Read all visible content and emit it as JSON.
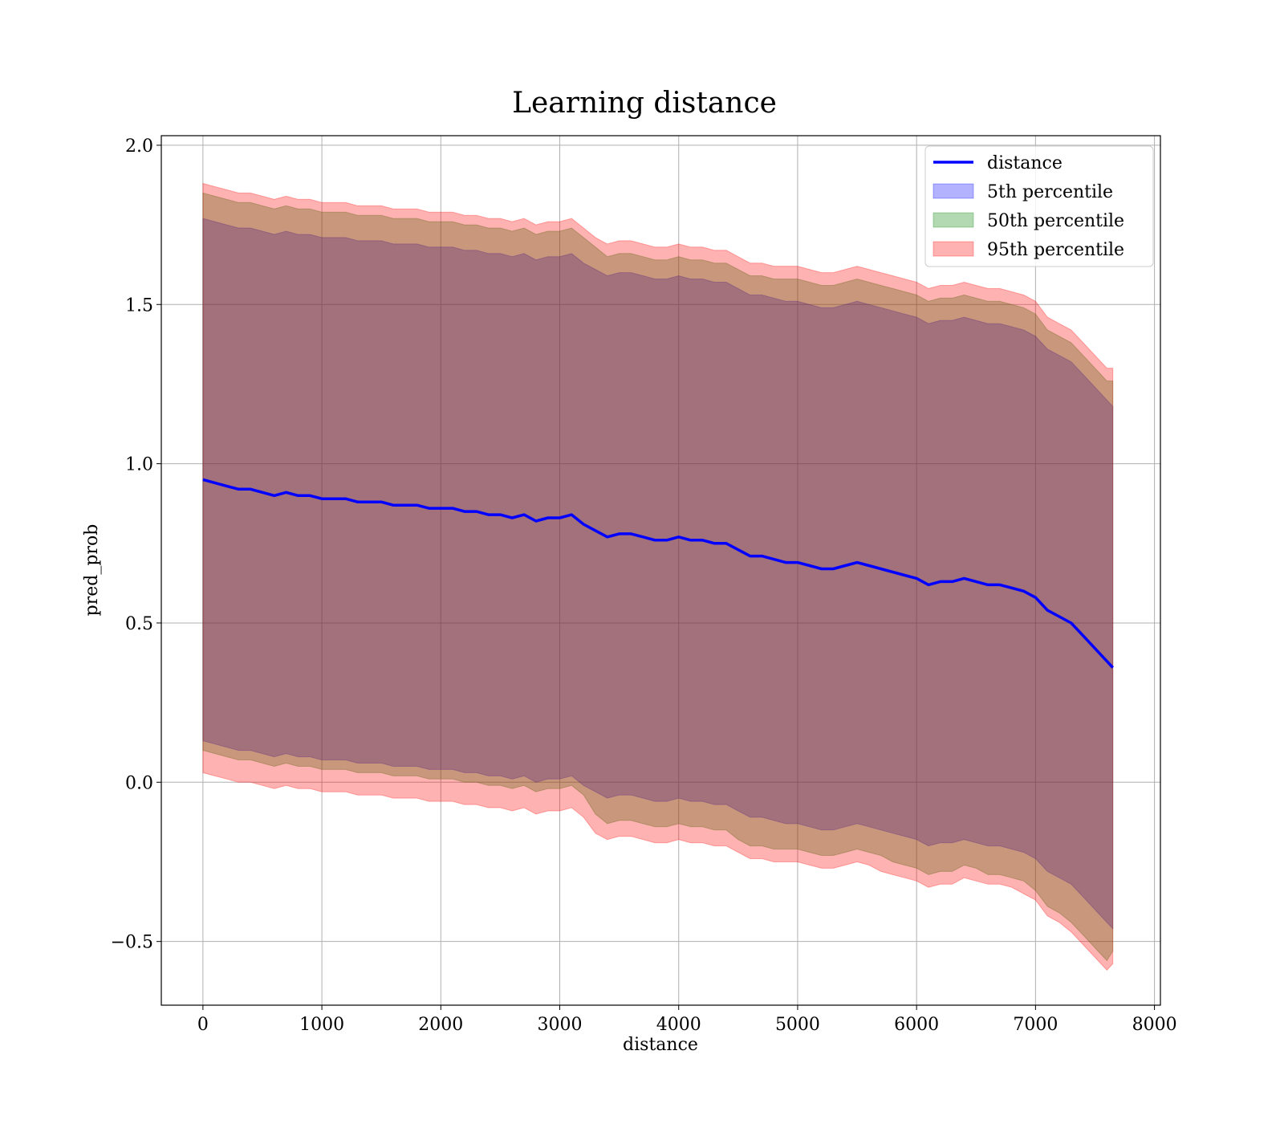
{
  "chart_data": {
    "type": "line",
    "title": "Learning distance",
    "xlabel": "distance",
    "ylabel": "pred_prob",
    "xlim": [
      -350,
      8050
    ],
    "ylim": [
      -0.7,
      2.03
    ],
    "xticks": [
      0,
      1000,
      2000,
      3000,
      4000,
      5000,
      6000,
      7000,
      8000
    ],
    "yticks": [
      -0.5,
      0.0,
      0.5,
      1.0,
      1.5,
      2.0
    ],
    "ytick_labels": [
      "−0.5",
      "0.0",
      "0.5",
      "1.0",
      "1.5",
      "2.0"
    ],
    "grid": true,
    "legend_position": "upper right",
    "x": [
      0,
      100,
      200,
      300,
      400,
      500,
      600,
      700,
      800,
      900,
      1000,
      1100,
      1200,
      1300,
      1400,
      1500,
      1600,
      1700,
      1800,
      1900,
      2000,
      2100,
      2200,
      2300,
      2400,
      2500,
      2600,
      2700,
      2800,
      2900,
      3000,
      3100,
      3200,
      3300,
      3400,
      3500,
      3600,
      3700,
      3800,
      3900,
      4000,
      4100,
      4200,
      4300,
      4400,
      4500,
      4600,
      4700,
      4800,
      4900,
      5000,
      5100,
      5200,
      5300,
      5400,
      5500,
      5600,
      5700,
      5800,
      5900,
      6000,
      6100,
      6200,
      6300,
      6400,
      6500,
      6600,
      6700,
      6800,
      6900,
      7000,
      7100,
      7200,
      7300,
      7400,
      7500,
      7600,
      7650
    ],
    "series": [
      {
        "name": "distance",
        "kind": "line",
        "color": "#0000ff",
        "values": [
          0.95,
          0.94,
          0.93,
          0.92,
          0.92,
          0.91,
          0.9,
          0.91,
          0.9,
          0.9,
          0.89,
          0.89,
          0.89,
          0.88,
          0.88,
          0.88,
          0.87,
          0.87,
          0.87,
          0.86,
          0.86,
          0.86,
          0.85,
          0.85,
          0.84,
          0.84,
          0.83,
          0.84,
          0.82,
          0.83,
          0.83,
          0.84,
          0.81,
          0.79,
          0.77,
          0.78,
          0.78,
          0.77,
          0.76,
          0.76,
          0.77,
          0.76,
          0.76,
          0.75,
          0.75,
          0.73,
          0.71,
          0.71,
          0.7,
          0.69,
          0.69,
          0.68,
          0.67,
          0.67,
          0.68,
          0.69,
          0.68,
          0.67,
          0.66,
          0.65,
          0.64,
          0.62,
          0.63,
          0.63,
          0.64,
          0.63,
          0.62,
          0.62,
          0.61,
          0.6,
          0.58,
          0.54,
          0.52,
          0.5,
          0.46,
          0.42,
          0.38,
          0.36
        ]
      },
      {
        "name": "5th percentile",
        "kind": "band",
        "color": "#0000ff",
        "lower": [
          0.13,
          0.12,
          0.11,
          0.1,
          0.1,
          0.09,
          0.08,
          0.09,
          0.08,
          0.08,
          0.07,
          0.07,
          0.07,
          0.06,
          0.06,
          0.06,
          0.05,
          0.05,
          0.05,
          0.04,
          0.04,
          0.04,
          0.03,
          0.03,
          0.02,
          0.02,
          0.01,
          0.02,
          0.0,
          0.01,
          0.01,
          0.02,
          -0.01,
          -0.03,
          -0.05,
          -0.04,
          -0.04,
          -0.05,
          -0.06,
          -0.06,
          -0.05,
          -0.06,
          -0.06,
          -0.07,
          -0.07,
          -0.09,
          -0.11,
          -0.11,
          -0.12,
          -0.13,
          -0.13,
          -0.14,
          -0.15,
          -0.15,
          -0.14,
          -0.13,
          -0.14,
          -0.15,
          -0.16,
          -0.17,
          -0.18,
          -0.2,
          -0.19,
          -0.19,
          -0.18,
          -0.19,
          -0.2,
          -0.2,
          -0.21,
          -0.22,
          -0.24,
          -0.28,
          -0.3,
          -0.32,
          -0.36,
          -0.4,
          -0.44,
          -0.46
        ],
        "upper": [
          1.77,
          1.76,
          1.75,
          1.74,
          1.74,
          1.73,
          1.72,
          1.73,
          1.72,
          1.72,
          1.71,
          1.71,
          1.71,
          1.7,
          1.7,
          1.7,
          1.69,
          1.69,
          1.69,
          1.68,
          1.68,
          1.68,
          1.67,
          1.67,
          1.66,
          1.66,
          1.65,
          1.66,
          1.64,
          1.65,
          1.65,
          1.66,
          1.63,
          1.61,
          1.59,
          1.6,
          1.6,
          1.59,
          1.58,
          1.58,
          1.59,
          1.58,
          1.58,
          1.57,
          1.57,
          1.55,
          1.53,
          1.53,
          1.52,
          1.51,
          1.51,
          1.5,
          1.49,
          1.49,
          1.5,
          1.51,
          1.5,
          1.49,
          1.48,
          1.47,
          1.46,
          1.44,
          1.45,
          1.45,
          1.46,
          1.45,
          1.44,
          1.44,
          1.43,
          1.42,
          1.4,
          1.36,
          1.34,
          1.32,
          1.28,
          1.24,
          1.2,
          1.18
        ]
      },
      {
        "name": "50th percentile",
        "kind": "band",
        "color": "#008000",
        "lower": [
          0.1,
          0.09,
          0.08,
          0.07,
          0.07,
          0.06,
          0.05,
          0.06,
          0.05,
          0.05,
          0.04,
          0.04,
          0.04,
          0.03,
          0.03,
          0.03,
          0.02,
          0.02,
          0.02,
          0.01,
          0.01,
          0.01,
          0.0,
          0.0,
          -0.01,
          -0.01,
          -0.02,
          -0.01,
          -0.03,
          -0.02,
          -0.02,
          -0.01,
          -0.04,
          -0.1,
          -0.13,
          -0.12,
          -0.12,
          -0.13,
          -0.14,
          -0.14,
          -0.13,
          -0.14,
          -0.14,
          -0.15,
          -0.15,
          -0.18,
          -0.2,
          -0.2,
          -0.21,
          -0.21,
          -0.21,
          -0.22,
          -0.23,
          -0.23,
          -0.22,
          -0.21,
          -0.22,
          -0.23,
          -0.25,
          -0.26,
          -0.27,
          -0.29,
          -0.28,
          -0.28,
          -0.26,
          -0.27,
          -0.29,
          -0.29,
          -0.3,
          -0.31,
          -0.34,
          -0.39,
          -0.41,
          -0.44,
          -0.48,
          -0.52,
          -0.56,
          -0.53
        ],
        "upper": [
          1.85,
          1.84,
          1.83,
          1.82,
          1.82,
          1.81,
          1.8,
          1.81,
          1.8,
          1.8,
          1.79,
          1.79,
          1.79,
          1.78,
          1.78,
          1.78,
          1.77,
          1.77,
          1.77,
          1.76,
          1.76,
          1.76,
          1.75,
          1.75,
          1.74,
          1.74,
          1.73,
          1.74,
          1.72,
          1.73,
          1.73,
          1.74,
          1.71,
          1.68,
          1.65,
          1.66,
          1.66,
          1.65,
          1.64,
          1.64,
          1.65,
          1.64,
          1.64,
          1.63,
          1.63,
          1.61,
          1.59,
          1.59,
          1.58,
          1.58,
          1.58,
          1.57,
          1.56,
          1.56,
          1.57,
          1.58,
          1.57,
          1.56,
          1.55,
          1.54,
          1.53,
          1.51,
          1.52,
          1.52,
          1.53,
          1.52,
          1.51,
          1.51,
          1.5,
          1.49,
          1.47,
          1.42,
          1.4,
          1.38,
          1.34,
          1.3,
          1.26,
          1.26
        ]
      },
      {
        "name": "95th percentile",
        "kind": "band",
        "color": "#ff0000",
        "lower": [
          0.03,
          0.02,
          0.01,
          0.0,
          0.0,
          -0.01,
          -0.02,
          -0.01,
          -0.02,
          -0.02,
          -0.03,
          -0.03,
          -0.03,
          -0.04,
          -0.04,
          -0.04,
          -0.05,
          -0.05,
          -0.05,
          -0.06,
          -0.06,
          -0.06,
          -0.07,
          -0.07,
          -0.08,
          -0.08,
          -0.09,
          -0.08,
          -0.1,
          -0.09,
          -0.09,
          -0.08,
          -0.11,
          -0.16,
          -0.18,
          -0.17,
          -0.17,
          -0.18,
          -0.19,
          -0.19,
          -0.18,
          -0.19,
          -0.19,
          -0.2,
          -0.2,
          -0.22,
          -0.24,
          -0.24,
          -0.25,
          -0.25,
          -0.25,
          -0.26,
          -0.27,
          -0.27,
          -0.26,
          -0.25,
          -0.26,
          -0.28,
          -0.29,
          -0.3,
          -0.31,
          -0.33,
          -0.32,
          -0.32,
          -0.3,
          -0.31,
          -0.32,
          -0.32,
          -0.33,
          -0.35,
          -0.37,
          -0.42,
          -0.44,
          -0.47,
          -0.51,
          -0.55,
          -0.59,
          -0.57
        ],
        "upper": [
          1.88,
          1.87,
          1.86,
          1.85,
          1.85,
          1.84,
          1.83,
          1.84,
          1.83,
          1.83,
          1.82,
          1.82,
          1.82,
          1.81,
          1.81,
          1.81,
          1.8,
          1.8,
          1.8,
          1.79,
          1.79,
          1.79,
          1.78,
          1.78,
          1.77,
          1.77,
          1.76,
          1.77,
          1.75,
          1.76,
          1.76,
          1.77,
          1.74,
          1.71,
          1.69,
          1.7,
          1.7,
          1.69,
          1.68,
          1.68,
          1.69,
          1.68,
          1.68,
          1.67,
          1.67,
          1.65,
          1.63,
          1.63,
          1.62,
          1.62,
          1.62,
          1.61,
          1.6,
          1.6,
          1.61,
          1.62,
          1.61,
          1.6,
          1.59,
          1.58,
          1.57,
          1.55,
          1.56,
          1.56,
          1.57,
          1.56,
          1.55,
          1.55,
          1.54,
          1.53,
          1.51,
          1.46,
          1.44,
          1.42,
          1.38,
          1.34,
          1.3,
          1.3
        ]
      }
    ]
  }
}
